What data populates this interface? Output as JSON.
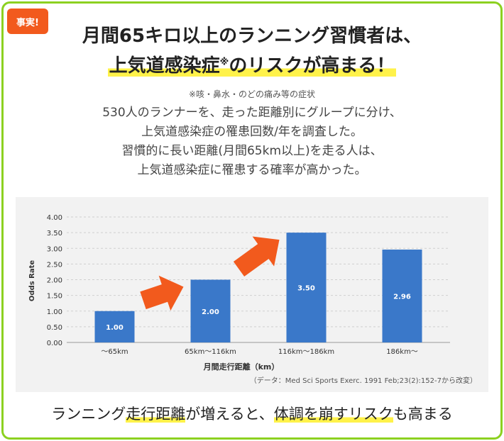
{
  "badge": "事実!",
  "headline": {
    "line1": "月間65キロ以上のランニング習慣者は、",
    "line2_highlight": "上気道感染症",
    "line2_mark": "※",
    "line2_mid": "のリスクが",
    "line2_highlight2": "高まる！"
  },
  "note": "※咳・鼻水・のどの痛み等の症状",
  "description": [
    "530人のランナーを、走った距離別にグループに分け、",
    "上気道感染症の罹患回数/年を調査した。",
    "習慣的に長い距離(月間65km以上)を走る人は、",
    "上気道感染症に罹患する確率が高かった。"
  ],
  "chart_data": {
    "type": "bar",
    "categories": [
      "～65km",
      "65km～116km",
      "116km～186km",
      "186km～"
    ],
    "values": [
      1.0,
      2.0,
      3.5,
      2.96
    ],
    "value_labels": [
      "1.00",
      "2.00",
      "3.50",
      "2.96"
    ],
    "xlabel": "月間走行距離（km）",
    "ylabel": "Odds Rate",
    "ylim": [
      0,
      4
    ],
    "yticks": [
      "0.00",
      "0.50",
      "1.00",
      "1.50",
      "2.00",
      "2.50",
      "3.00",
      "3.50",
      "4.00"
    ],
    "source": "（データ：Med Sci Sports Exerc. 1991 Feb;23(2):152-7から改変）",
    "bar_color": "#3a78c9",
    "arrow_color": "#f25a1d",
    "grid": true
  },
  "bottom": {
    "pre": "ランニング",
    "hl1": "走行距離",
    "mid": "が増えると、",
    "hl2": "体調を崩すリスク",
    "post": "も高まる"
  },
  "colors": {
    "frame": "#8cd120",
    "badge": "#f25a1d",
    "highlight": "#fff24a"
  }
}
